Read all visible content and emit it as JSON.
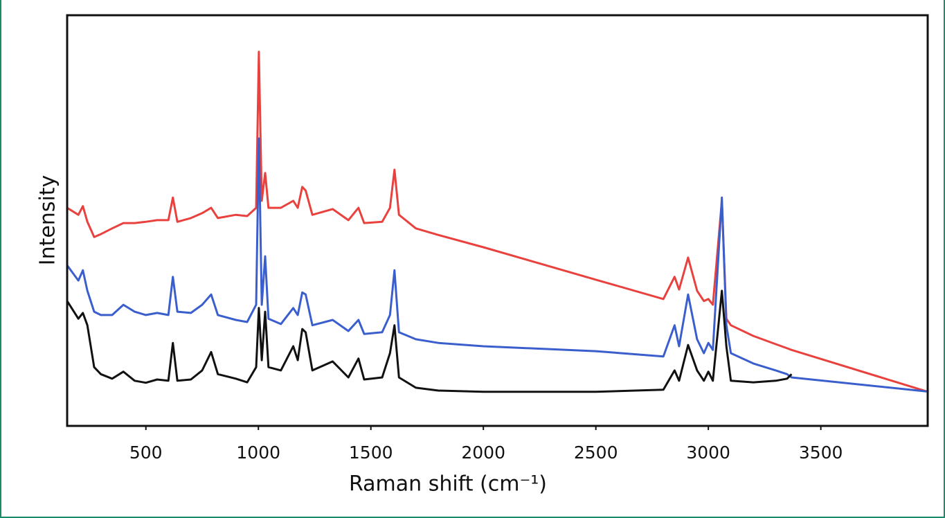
{
  "chart_data": {
    "type": "line",
    "xlabel": "Raman shift (cm⁻¹)",
    "ylabel": "Intensity",
    "xlim": [
      150,
      3975
    ],
    "ylim": [
      0,
      100
    ],
    "xticks": [
      500,
      1000,
      1500,
      2000,
      2500,
      3000,
      3500
    ],
    "x": [
      150,
      200,
      220,
      240,
      270,
      300,
      350,
      400,
      450,
      500,
      550,
      600,
      620,
      640,
      700,
      750,
      790,
      820,
      900,
      950,
      990,
      1002,
      1015,
      1030,
      1045,
      1100,
      1155,
      1175,
      1195,
      1210,
      1240,
      1330,
      1400,
      1445,
      1470,
      1550,
      1585,
      1605,
      1625,
      1700,
      1800,
      2000,
      2500,
      2800,
      2850,
      2870,
      2910,
      2950,
      2980,
      3000,
      3020,
      3060,
      3080,
      3100,
      3200,
      3300,
      3350,
      3370,
      3970
    ],
    "series": [
      {
        "name": null,
        "color": "#e8413e",
        "values": [
          53.1,
          51.4,
          53.5,
          49.7,
          46.0,
          46.7,
          48.1,
          49.4,
          49.4,
          49.7,
          50.1,
          50.1,
          55.6,
          49.7,
          50.6,
          51.8,
          53.1,
          50.6,
          51.4,
          51.1,
          53.1,
          91.1,
          54.8,
          61.6,
          53.1,
          53.1,
          54.8,
          53.1,
          58.2,
          57.3,
          51.4,
          52.8,
          50.1,
          53.1,
          49.4,
          49.7,
          53.1,
          62.4,
          51.4,
          48.1,
          46.5,
          43.5,
          35.6,
          30.9,
          36.3,
          33.2,
          41.0,
          32.9,
          30.4,
          30.9,
          29.5,
          54.8,
          26.1,
          24.5,
          21.9,
          19.9,
          18.9,
          18.5,
          8.4
        ]
      },
      {
        "name": null,
        "color": "#3a5fcd",
        "values": [
          39.1,
          35.4,
          37.9,
          32.9,
          27.8,
          27.0,
          27.0,
          29.5,
          27.8,
          27.0,
          27.5,
          27.0,
          36.3,
          27.8,
          27.5,
          29.5,
          32.0,
          27.0,
          25.8,
          25.3,
          29.5,
          70.0,
          29.5,
          41.3,
          26.1,
          24.8,
          28.7,
          27.0,
          32.5,
          32.0,
          24.5,
          25.8,
          23.1,
          25.8,
          22.4,
          22.8,
          27.0,
          37.9,
          22.8,
          21.1,
          20.2,
          19.4,
          18.2,
          16.9,
          24.5,
          19.4,
          32.0,
          21.1,
          17.7,
          20.2,
          18.5,
          55.6,
          24.5,
          17.7,
          15.2,
          13.5,
          12.6,
          11.8,
          8.4
        ]
      },
      {
        "name": null,
        "color": "#111111",
        "values": [
          30.4,
          26.1,
          27.5,
          24.5,
          14.3,
          12.6,
          11.5,
          13.2,
          11.0,
          10.5,
          11.3,
          11.0,
          20.2,
          11.0,
          11.3,
          13.5,
          18.0,
          12.6,
          11.5,
          10.6,
          14.3,
          28.7,
          16.0,
          27.8,
          14.3,
          13.5,
          19.4,
          16.0,
          23.6,
          22.8,
          13.5,
          15.7,
          11.8,
          16.4,
          11.3,
          11.8,
          17.7,
          24.5,
          11.8,
          9.3,
          8.6,
          8.3,
          8.3,
          8.8,
          13.5,
          11.0,
          19.7,
          13.5,
          11.0,
          13.2,
          11.0,
          32.9,
          19.4,
          11.0,
          10.6,
          11.0,
          11.5,
          12.6,
          null
        ]
      }
    ]
  }
}
